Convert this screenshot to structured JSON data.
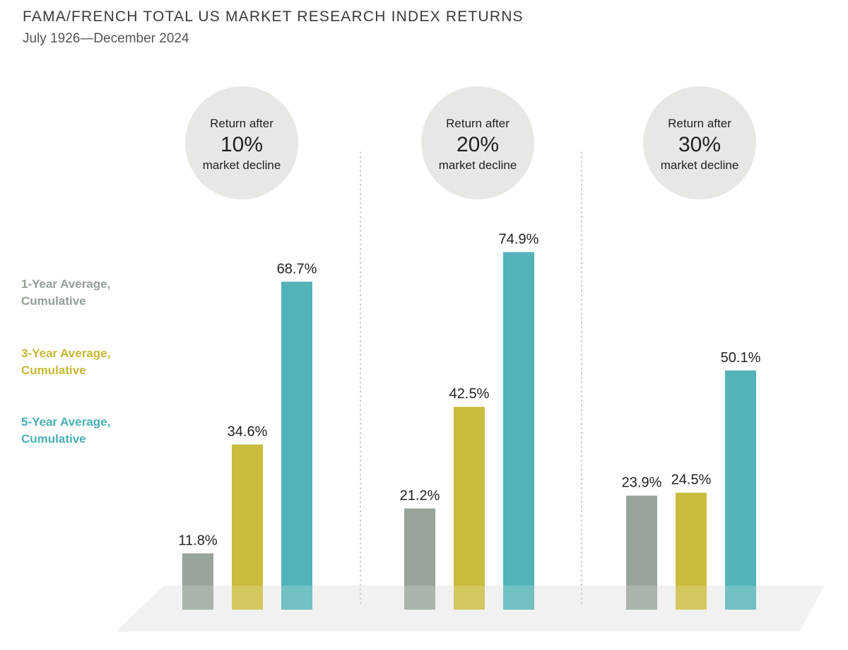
{
  "title": "FAMA/FRENCH TOTAL US MARKET RESEARCH INDEX RETURNS",
  "subtitle": "July 1926—December 2024",
  "colors": {
    "one_year": "#929f93",
    "three_year": "#c7b834",
    "five_year": "#4aafb4",
    "circle": "#e6e9e3",
    "floor": "#eeeeee",
    "divider": "#bdbdbd",
    "label_text": "#222222"
  },
  "legend": [
    {
      "line1": "1-Year Average,",
      "line2": "Cumulative",
      "color": "#929f93"
    },
    {
      "line1": "3-Year Average,",
      "line2": "Cumulative",
      "color": "#c7b834"
    },
    {
      "line1": "5-Year Average,",
      "line2": "Cumulative",
      "color": "#4aafb4"
    }
  ],
  "chart_data": {
    "type": "bar",
    "categories": [
      "10%",
      "20%",
      "30%"
    ],
    "category_headers": [
      {
        "top": "Return after",
        "big": "10%",
        "bottom": "market decline"
      },
      {
        "top": "Return after",
        "big": "20%",
        "bottom": "market decline"
      },
      {
        "top": "Return after",
        "big": "30%",
        "bottom": "market decline"
      }
    ],
    "series": [
      {
        "name": "1-Year Average, Cumulative",
        "values": [
          11.8,
          21.2,
          23.9
        ]
      },
      {
        "name": "3-Year Average, Cumulative",
        "values": [
          34.6,
          42.5,
          24.5
        ]
      },
      {
        "name": "5-Year Average, Cumulative",
        "values": [
          68.7,
          74.9,
          50.1
        ]
      }
    ],
    "value_labels": [
      [
        "11.8%",
        "21.2%",
        "23.9%"
      ],
      [
        "34.6%",
        "42.5%",
        "24.5%"
      ],
      [
        "68.7%",
        "74.9%",
        "50.1%"
      ]
    ],
    "ylim": [
      0,
      80
    ],
    "grid": false,
    "legend_position": "left"
  }
}
